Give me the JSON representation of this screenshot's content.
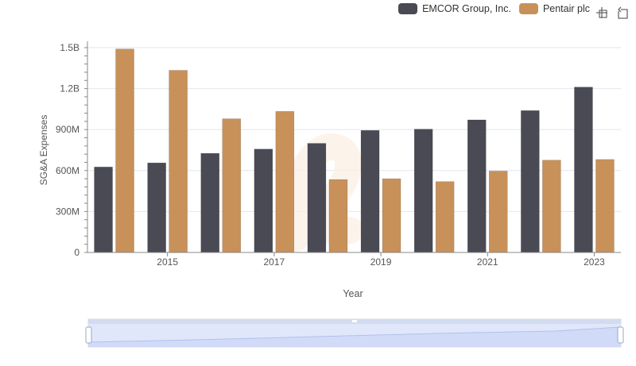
{
  "chart_data": {
    "type": "bar",
    "categories": [
      "2014",
      "2015",
      "2016",
      "2017",
      "2018",
      "2019",
      "2020",
      "2021",
      "2022",
      "2023"
    ],
    "series": [
      {
        "name": "EMCOR Group, Inc.",
        "color": "#4a4a55",
        "values": [
          626000000,
          656000000,
          726000000,
          757000000,
          799000000,
          894000000,
          903000000,
          971000000,
          1039000000,
          1211000000
        ]
      },
      {
        "name": "Pentair plc",
        "color": "#c8915a",
        "values": [
          1490000000,
          1334000000,
          979000000,
          1033000000,
          534000000,
          540000000,
          519000000,
          596000000,
          676000000,
          681000000
        ]
      }
    ],
    "xlabel": "Year",
    "ylabel": "SG&A Expenses",
    "ylim": [
      0,
      1500000000
    ],
    "yticks": [
      0,
      300000000,
      600000000,
      900000000,
      1200000000,
      1500000000
    ],
    "ytick_labels": [
      "0",
      "300M",
      "600M",
      "900M",
      "1.2B",
      "1.5B"
    ],
    "xtick_labels": [
      "2015",
      "2017",
      "2019",
      "2021",
      "2023"
    ],
    "grid": true,
    "legend_position": "top-right"
  },
  "toolbar": {
    "icons": [
      "zoom-in-icon",
      "reset-zoom-icon"
    ]
  }
}
